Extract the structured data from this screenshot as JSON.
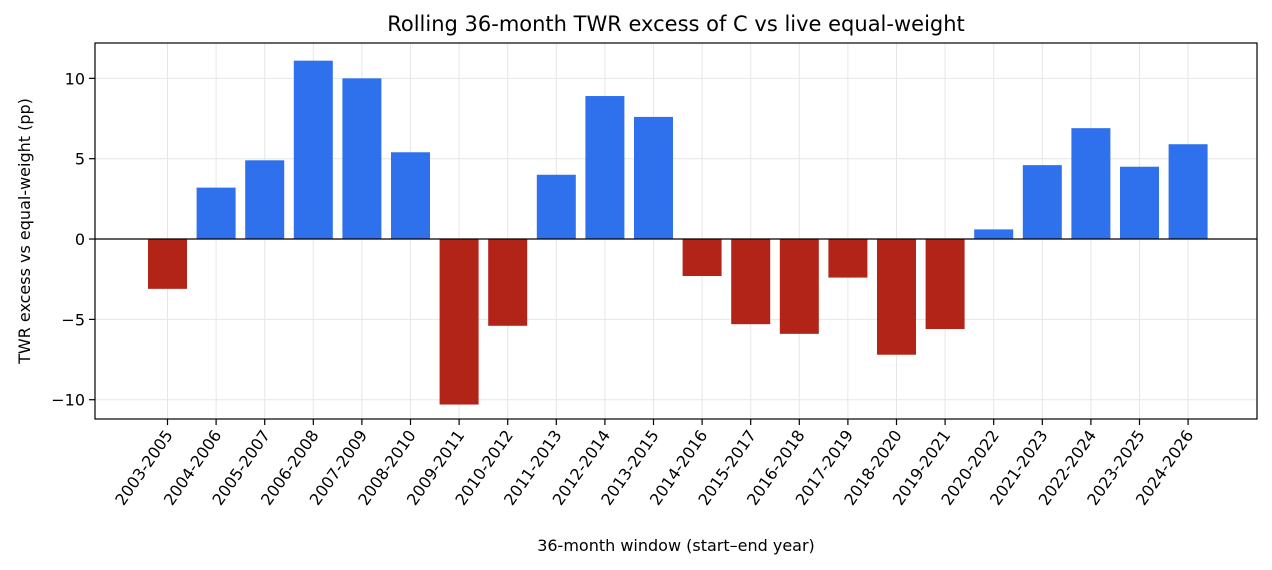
{
  "chart_data": {
    "type": "bar",
    "title": "Rolling 36-month TWR excess of C vs live equal-weight",
    "xlabel": "36-month window (start–end year)",
    "ylabel": "TWR excess vs equal-weight (pp)",
    "categories": [
      "2003-2005",
      "2004-2006",
      "2005-2007",
      "2006-2008",
      "2007-2009",
      "2008-2010",
      "2009-2011",
      "2010-2012",
      "2011-2013",
      "2012-2014",
      "2013-2015",
      "2014-2016",
      "2015-2017",
      "2016-2018",
      "2017-2019",
      "2018-2020",
      "2019-2021",
      "2020-2022",
      "2021-2023",
      "2022-2024",
      "2023-2025",
      "2024-2026"
    ],
    "values": [
      -3.1,
      3.2,
      4.9,
      11.1,
      10.0,
      5.4,
      -10.3,
      -5.4,
      4.0,
      8.9,
      7.6,
      -2.3,
      -5.3,
      -5.9,
      -2.4,
      -7.2,
      -5.6,
      0.6,
      4.6,
      6.9,
      4.5,
      5.9
    ],
    "ylim": [
      -11.2,
      12.2
    ],
    "yticks": [
      -10,
      -5,
      0,
      5,
      10
    ],
    "ytick_labels": [
      "−10",
      "−5",
      "0",
      "5",
      "10"
    ],
    "grid": true,
    "colors": {
      "positive": "#2f71ec",
      "negative": "#b22418",
      "zero_line": "#000000",
      "grid": "#e6e6e6"
    }
  }
}
